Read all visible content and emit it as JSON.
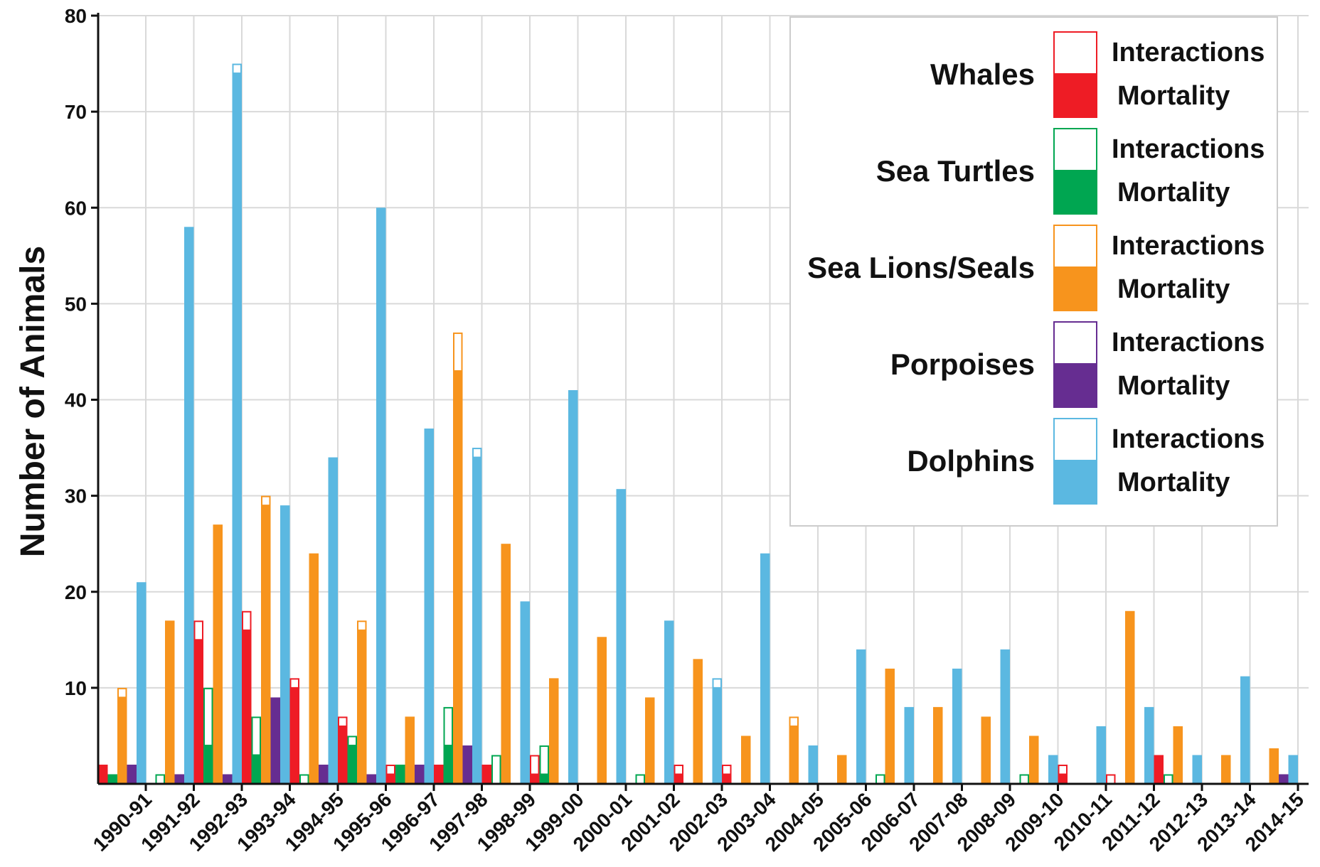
{
  "chart_data": {
    "type": "bar",
    "title": "",
    "xlabel": "",
    "ylabel": "Number of Animals",
    "ylim": [
      0,
      80
    ],
    "yticks": [
      10,
      20,
      30,
      40,
      50,
      60,
      70,
      80
    ],
    "grid": true,
    "legend_position": "top-right",
    "categories": [
      "1990-91",
      "1991-92",
      "1992-93",
      "1993-94",
      "1994-95",
      "1995-96",
      "1996-97",
      "1997-98",
      "1998-99",
      "1999-00",
      "2000-01",
      "2001-02",
      "2002-03",
      "2003-04",
      "2004-05",
      "2005-06",
      "2006-07",
      "2007-08",
      "2008-09",
      "2009-10",
      "2010-11",
      "2011-12",
      "2012-13",
      "2013-14",
      "2014-15"
    ],
    "legend": {
      "interactions_label": "Interactions",
      "mortality_label": "Mortality"
    },
    "series": [
      {
        "name": "Whales",
        "color": "#ee1c25",
        "mortality": [
          2,
          0,
          15,
          16,
          10,
          6,
          1,
          2,
          2,
          1,
          0,
          0,
          1,
          1,
          0,
          0,
          0,
          0,
          0,
          0,
          1,
          0,
          3,
          0,
          0
        ],
        "interactions": [
          2,
          0,
          17,
          18,
          11,
          7,
          2,
          2,
          2,
          3,
          0,
          0,
          2,
          2,
          0,
          0,
          0,
          0,
          0,
          0,
          2,
          1,
          3,
          0,
          0
        ]
      },
      {
        "name": "Sea Turtles",
        "color": "#00a651",
        "mortality": [
          1,
          0,
          4,
          3,
          0,
          4,
          2,
          4,
          0,
          1,
          0,
          0,
          0,
          0,
          0,
          0,
          0,
          0,
          0,
          0,
          0,
          0,
          0,
          0,
          0
        ],
        "interactions": [
          1,
          1,
          10,
          7,
          1,
          5,
          2,
          8,
          3,
          4,
          0,
          1,
          0,
          0,
          0,
          0,
          1,
          0,
          0,
          1,
          0,
          0,
          1,
          0,
          0
        ]
      },
      {
        "name": "Sea Lions/Seals",
        "color": "#f7941d",
        "mortality": [
          9,
          17,
          27,
          29,
          24,
          16,
          7,
          43,
          25,
          11,
          15.3,
          9,
          13,
          5,
          6,
          3,
          12,
          8,
          7,
          5,
          0,
          18,
          6,
          3,
          3.7
        ],
        "interactions": [
          10,
          17,
          27,
          30,
          24,
          17,
          7,
          47,
          25,
          11,
          15.3,
          9,
          13,
          5,
          7,
          3,
          12,
          8,
          7,
          5,
          0,
          18,
          6,
          3,
          3.7
        ]
      },
      {
        "name": "Porpoises",
        "color": "#662d91",
        "mortality": [
          2,
          1,
          1,
          9,
          2,
          1,
          2,
          4,
          0,
          0,
          0,
          0,
          0,
          0,
          0,
          0,
          0,
          0,
          0,
          0,
          0,
          0,
          0,
          0,
          1
        ],
        "interactions": [
          2,
          1,
          1,
          9,
          2,
          1,
          2,
          4,
          0,
          0,
          0,
          0,
          0,
          0,
          0,
          0,
          0,
          0,
          0,
          0,
          0,
          0,
          0,
          0,
          1
        ]
      },
      {
        "name": "Dolphins",
        "color": "#5bb8e1",
        "mortality": [
          21,
          58,
          74,
          29,
          34,
          60,
          37,
          34,
          19,
          41,
          30.7,
          17,
          10,
          24,
          4,
          14,
          8,
          12,
          14,
          3,
          6,
          8,
          3,
          11.2,
          3
        ],
        "interactions": [
          21,
          58,
          75,
          29,
          34,
          60,
          37,
          35,
          19,
          41,
          30.7,
          17,
          11,
          24,
          4,
          14,
          8,
          12,
          14,
          3,
          6,
          8,
          3,
          11.2,
          3
        ]
      }
    ]
  }
}
